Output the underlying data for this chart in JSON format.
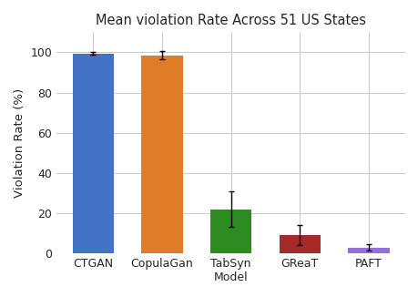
{
  "categories": [
    "CTGAN",
    "CopulaGan",
    "TabSyn\nModel",
    "GReaT",
    "PAFT"
  ],
  "values": [
    99.5,
    98.5,
    22.0,
    9.0,
    3.0
  ],
  "errors": [
    0.5,
    2.0,
    9.0,
    5.0,
    1.5
  ],
  "bar_colors": [
    "#4472C4",
    "#E07B27",
    "#2E8B22",
    "#A52A2A",
    "#9370DB"
  ],
  "title": "Mean violation Rate Across 51 US States",
  "ylabel": "Violation Rate (%)",
  "ylim": [
    0,
    110
  ],
  "yticks": [
    0,
    20,
    40,
    60,
    80,
    100
  ],
  "title_fontsize": 10.5,
  "label_fontsize": 9.5,
  "tick_fontsize": 9,
  "figsize": [
    4.6,
    3.26
  ],
  "dpi": 100
}
